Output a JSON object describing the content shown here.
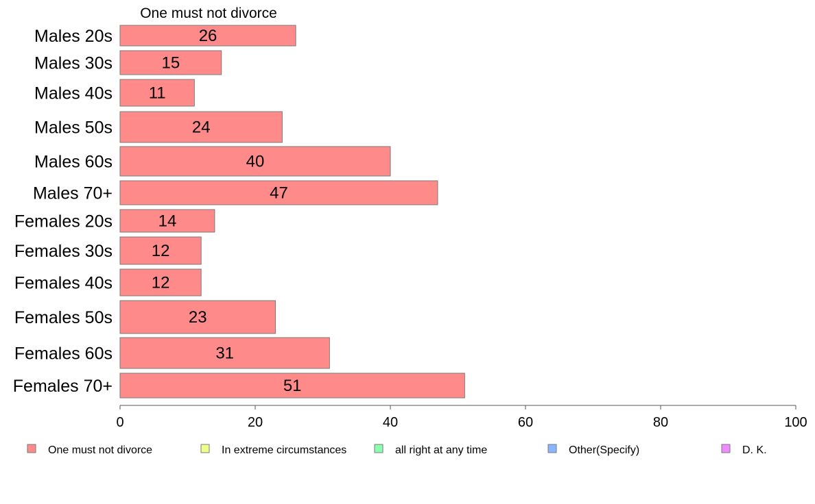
{
  "chart_data": {
    "type": "bar",
    "orientation": "horizontal",
    "title": "One must not divorce",
    "categories": [
      "Males 20s",
      "Males 30s",
      "Males 40s",
      "Males 50s",
      "Males 60s",
      "Males 70+",
      "Females 20s",
      "Females 30s",
      "Females 40s",
      "Females 50s",
      "Females 60s",
      "Females 70+"
    ],
    "series": [
      {
        "name": "One must not divorce",
        "values": [
          26,
          15,
          11,
          24,
          40,
          47,
          14,
          12,
          12,
          23,
          31,
          51
        ],
        "color": "#ff8a8a"
      }
    ],
    "data_labels": [
      "26",
      "15",
      "11",
      "24",
      "40",
      "47",
      "14",
      "12",
      "12",
      "23",
      "31",
      "51"
    ],
    "xlim": [
      0,
      100
    ],
    "xticks": [
      "0",
      "20",
      "40",
      "60",
      "80",
      "100"
    ],
    "grid": false,
    "legend": {
      "placement": "bottom",
      "items": [
        {
          "label": "One must not divorce",
          "color": "#ff8a8a"
        },
        {
          "label": "In extreme circumstances",
          "color": "#f0ff8a"
        },
        {
          "label": "all right at any time",
          "color": "#8affb0"
        },
        {
          "label": "Other(Specify)",
          "color": "#8ab4ff"
        },
        {
          "label": "D. K.",
          "color": "#f08aff"
        }
      ]
    }
  }
}
